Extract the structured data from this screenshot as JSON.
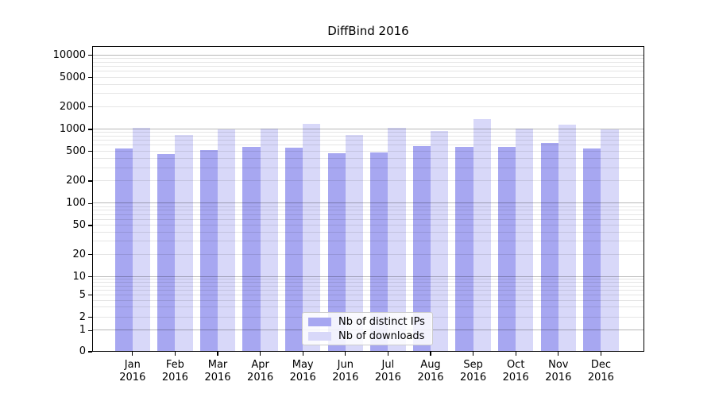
{
  "title": "DiffBind 2016",
  "chart_data": {
    "type": "bar",
    "title": "DiffBind 2016",
    "categories": [
      "Jan 2016",
      "Feb 2016",
      "Mar 2016",
      "Apr 2016",
      "May 2016",
      "Jun 2016",
      "Jul 2016",
      "Aug 2016",
      "Sep 2016",
      "Oct 2016",
      "Nov 2016",
      "Dec 2016"
    ],
    "series": [
      {
        "name": "Nb of distinct IPs",
        "color": "#a7a7f1",
        "values": [
          550,
          460,
          520,
          575,
          565,
          470,
          490,
          590,
          575,
          570,
          660,
          545
        ]
      },
      {
        "name": "Nb of downloads",
        "color": "#d8d8f9",
        "values": [
          1040,
          845,
          1000,
          1020,
          1200,
          830,
          1050,
          950,
          1360,
          1030,
          1170,
          990
        ]
      }
    ],
    "xlabel": "",
    "ylabel": "",
    "yscale": "pseudo-log",
    "ylim": [
      0,
      13000
    ],
    "y_ticks": [
      {
        "value": 0,
        "pos": 0.0
      },
      {
        "value": 1,
        "pos": 0.0691
      },
      {
        "value": 2,
        "pos": 0.1125
      },
      {
        "value": 5,
        "pos": 0.1852
      },
      {
        "value": 10,
        "pos": 0.2449
      },
      {
        "value": 20,
        "pos": 0.3177
      },
      {
        "value": 50,
        "pos": 0.413
      },
      {
        "value": 100,
        "pos": 0.4847
      },
      {
        "value": 200,
        "pos": 0.5584
      },
      {
        "value": 500,
        "pos": 0.6553
      },
      {
        "value": 1000,
        "pos": 0.7273
      },
      {
        "value": 2000,
        "pos": 0.8008
      },
      {
        "value": 5000,
        "pos": 0.897
      },
      {
        "value": 10000,
        "pos": 0.9697
      }
    ],
    "y_major_values": [
      1,
      10,
      100,
      1000,
      10000
    ],
    "y_minor_values": [
      3,
      4,
      6,
      7,
      8,
      9,
      30,
      40,
      60,
      70,
      80,
      90,
      300,
      400,
      600,
      700,
      800,
      900,
      3000,
      4000,
      6000,
      7000,
      8000,
      9000
    ],
    "grid": true,
    "legend_position": "lower center"
  },
  "legend": {
    "items": [
      {
        "label": "Nb of distinct IPs",
        "series_index": 0
      },
      {
        "label": "Nb of downloads",
        "series_index": 1
      }
    ]
  },
  "colors": {
    "bar_ips": "#a7a7f1",
    "bar_downloads": "#d8d8f9",
    "grid_major": "rgba(0,0,0,0.28)",
    "grid_minor": "rgba(0,0,0,0.10)",
    "axis_border": "#000000",
    "legend_border": "#cccccc",
    "legend_bg": "rgba(255,255,255,0.85)"
  }
}
